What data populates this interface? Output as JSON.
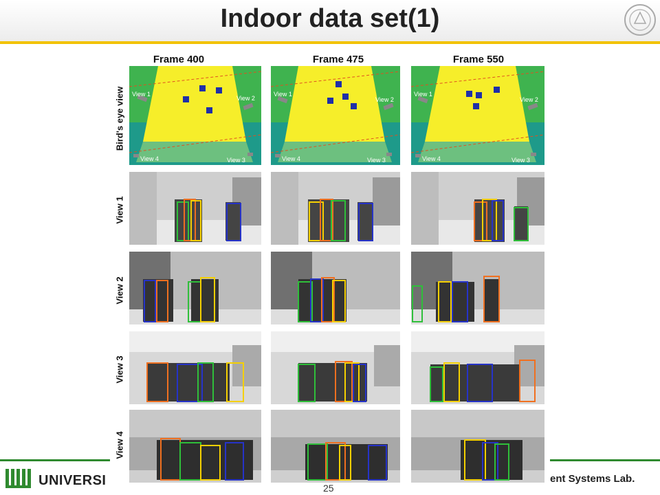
{
  "slide": {
    "title": "Indoor data set(1)",
    "page_number": "25",
    "footer_left": "UNIVERSI",
    "footer_right": "ent Systems Lab."
  },
  "figure": {
    "frames": [
      "Frame 400",
      "Frame 475",
      "Frame 550"
    ],
    "rows": [
      "Bird's eye view",
      "View 1",
      "View 2",
      "View 3",
      "View 4"
    ],
    "birds_eye_labels": {
      "view1": "View 1",
      "view2": "View 2",
      "view3": "View 3",
      "view4": "View 4"
    }
  },
  "colors": {
    "accent_yellow": "#f2c200",
    "footer_green": "#2f8a2f",
    "field_green": "#3fb34f",
    "field_teal": "#1e9a8a",
    "area_yellow": "#f6ee2a",
    "person_blue": "#1f2fa8"
  }
}
